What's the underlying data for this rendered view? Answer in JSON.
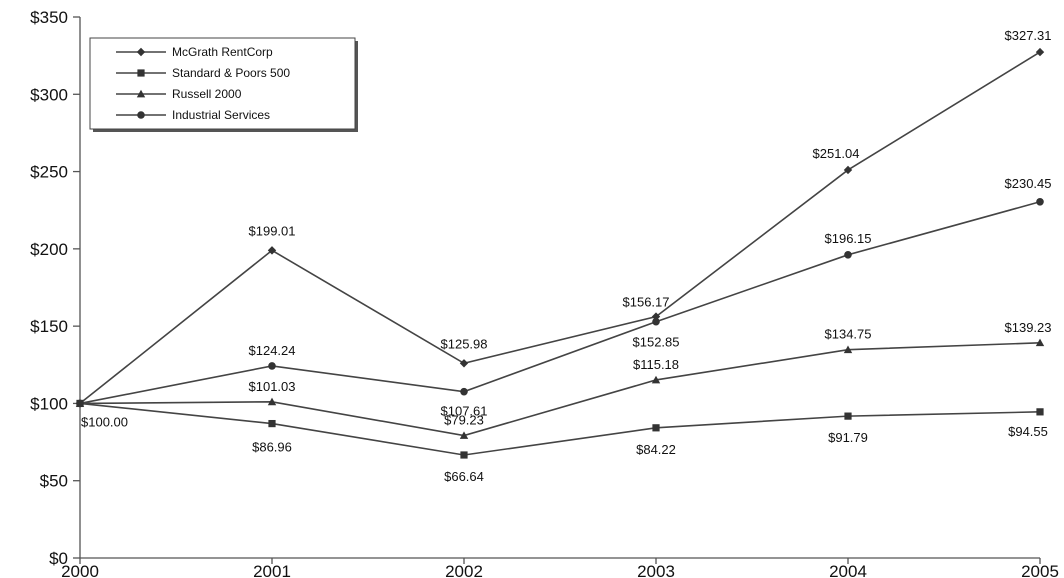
{
  "chart_data": {
    "type": "line",
    "title": "",
    "xlabel": "",
    "ylabel": "",
    "x": [
      2000,
      2001,
      2002,
      2003,
      2004,
      2005
    ],
    "x_tick_labels": [
      "2000",
      "2001",
      "2002",
      "2003",
      "2004",
      "2005"
    ],
    "ylim": [
      0,
      350
    ],
    "y_ticks": [
      0,
      50,
      100,
      150,
      200,
      250,
      300,
      350
    ],
    "y_tick_labels": [
      "$0",
      "$50",
      "$100",
      "$150",
      "$200",
      "$250",
      "$300",
      "$350"
    ],
    "grid": false,
    "legend_position": "top-left",
    "series": [
      {
        "name": "McGrath RentCorp",
        "marker": "diamond",
        "values": [
          100.0,
          199.01,
          125.98,
          156.17,
          251.04,
          327.31
        ],
        "labels": [
          "$100.00",
          "$199.01",
          "$125.98",
          "$156.17",
          "$251.04",
          "$327.31"
        ],
        "label_shown": [
          true,
          true,
          true,
          true,
          true,
          true
        ]
      },
      {
        "name": "Standard & Poors 500",
        "marker": "square",
        "values": [
          100.0,
          86.96,
          66.64,
          84.22,
          91.79,
          94.55
        ],
        "labels": [
          "$100.00",
          "$86.96",
          "$66.64",
          "$84.22",
          "$91.79",
          "$94.55"
        ],
        "label_shown": [
          false,
          true,
          true,
          true,
          true,
          true
        ]
      },
      {
        "name": "Russell 2000",
        "marker": "triangle",
        "values": [
          100.0,
          101.03,
          79.23,
          115.18,
          134.75,
          139.23
        ],
        "labels": [
          "$100.00",
          "$101.03",
          "$79.23",
          "$115.18",
          "$134.75",
          "$139.23"
        ],
        "label_shown": [
          false,
          true,
          true,
          true,
          true,
          true
        ]
      },
      {
        "name": "Industrial Services",
        "marker": "circle",
        "values": [
          100.0,
          124.24,
          107.61,
          152.85,
          196.15,
          230.45
        ],
        "labels": [
          "$100.00",
          "$124.24",
          "$107.61",
          "$152.85",
          "$196.15",
          "$230.45"
        ],
        "label_shown": [
          false,
          true,
          true,
          true,
          true,
          true
        ]
      }
    ]
  }
}
